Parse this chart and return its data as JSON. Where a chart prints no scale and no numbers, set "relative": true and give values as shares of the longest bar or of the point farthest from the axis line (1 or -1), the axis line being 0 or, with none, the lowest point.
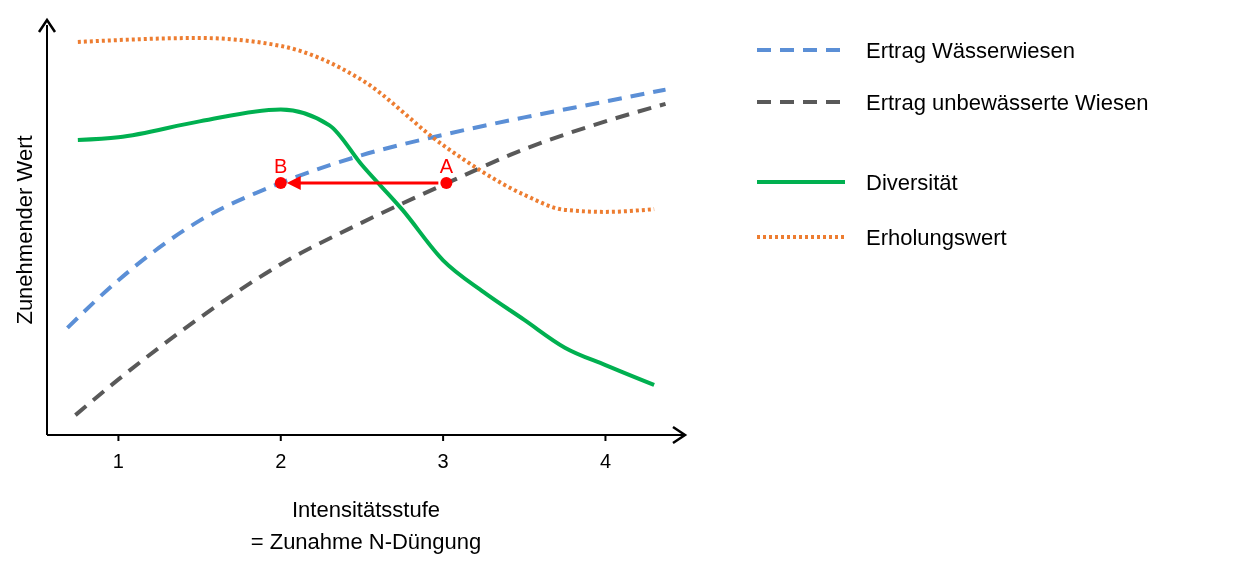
{
  "chart_data": {
    "type": "line",
    "relative": true,
    "xlabel": "Intensitätsstufe\n= Zunahme N-Düngung",
    "ylabel": "Zunehmender Wert",
    "xlim": [
      0.56,
      4.49
    ],
    "xticks": [
      1,
      2,
      3,
      4
    ],
    "legend": "top right",
    "grid": false,
    "series": [
      {
        "name": "Ertrag Wässerwiesen",
        "color": "#5b8fd6",
        "line_style": "dashed",
        "x": [
          0.686,
          1,
          1.5,
          2,
          2.5,
          3,
          3.5,
          4,
          4.37
        ],
        "values": [
          0.27,
          0.39,
          0.54,
          0.635,
          0.705,
          0.756,
          0.8,
          0.84,
          0.87
        ]
      },
      {
        "name": "Ertrag unbewässerte Wiesen",
        "color": "#595959",
        "line_style": "dashed",
        "x": [
          0.735,
          1,
          1.5,
          2,
          2.5,
          3,
          3.5,
          4,
          4.37
        ],
        "values": [
          0.05,
          0.14,
          0.295,
          0.43,
          0.535,
          0.63,
          0.72,
          0.79,
          0.834
        ]
      },
      {
        "name": "Diversität",
        "color": "#00b050",
        "line_style": "solid",
        "x": [
          0.75,
          1,
          1.5,
          2,
          2.3,
          2.5,
          2.75,
          3,
          3.25,
          3.5,
          3.75,
          4,
          4.3
        ],
        "values": [
          0.743,
          0.75,
          0.79,
          0.82,
          0.78,
          0.68,
          0.567,
          0.44,
          0.36,
          0.29,
          0.22,
          0.176,
          0.126
        ]
      },
      {
        "name": "Erholungswert",
        "color": "#ed7d31",
        "line_style": "dotted",
        "x": [
          0.75,
          1.5,
          2,
          2.5,
          3,
          3.5,
          3.75,
          4,
          4.3
        ],
        "values": [
          0.99,
          1,
          0.98,
          0.894,
          0.73,
          0.605,
          0.567,
          0.562,
          0.569
        ]
      },
      {
        "type": "scatter",
        "marker": "circle",
        "color": "#ff0000",
        "x": [
          2.0,
          3.02
        ],
        "values": [
          0.635,
          0.635
        ]
      }
    ],
    "annotations": [
      {
        "text": "B",
        "x": 2.0,
        "y": 0.635
      },
      {
        "text": "A",
        "x": 3.02,
        "y": 0.635
      }
    ]
  }
}
